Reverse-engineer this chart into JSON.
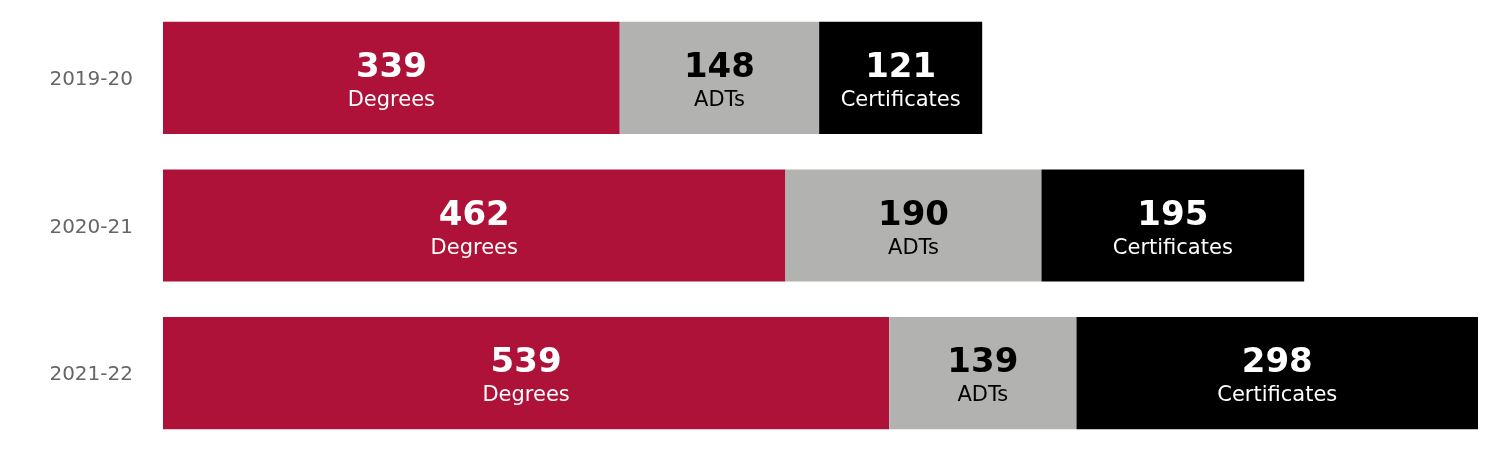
{
  "chart_data": {
    "type": "bar",
    "orientation": "horizontal",
    "stacked": true,
    "data_labels": true,
    "tick_labels": "y",
    "grid": false,
    "legend": false,
    "categories": [
      "2019-20",
      "2020-21",
      "2021-22"
    ],
    "series": [
      {
        "name": "Degrees",
        "color": "#ae1238",
        "values": [
          339,
          462,
          539
        ]
      },
      {
        "name": "ADTs",
        "color": "#b2b3b0",
        "values": [
          148,
          190,
          139
        ]
      },
      {
        "name": "Certificates",
        "color": "#000000",
        "values": [
          121,
          195,
          298
        ]
      }
    ]
  }
}
